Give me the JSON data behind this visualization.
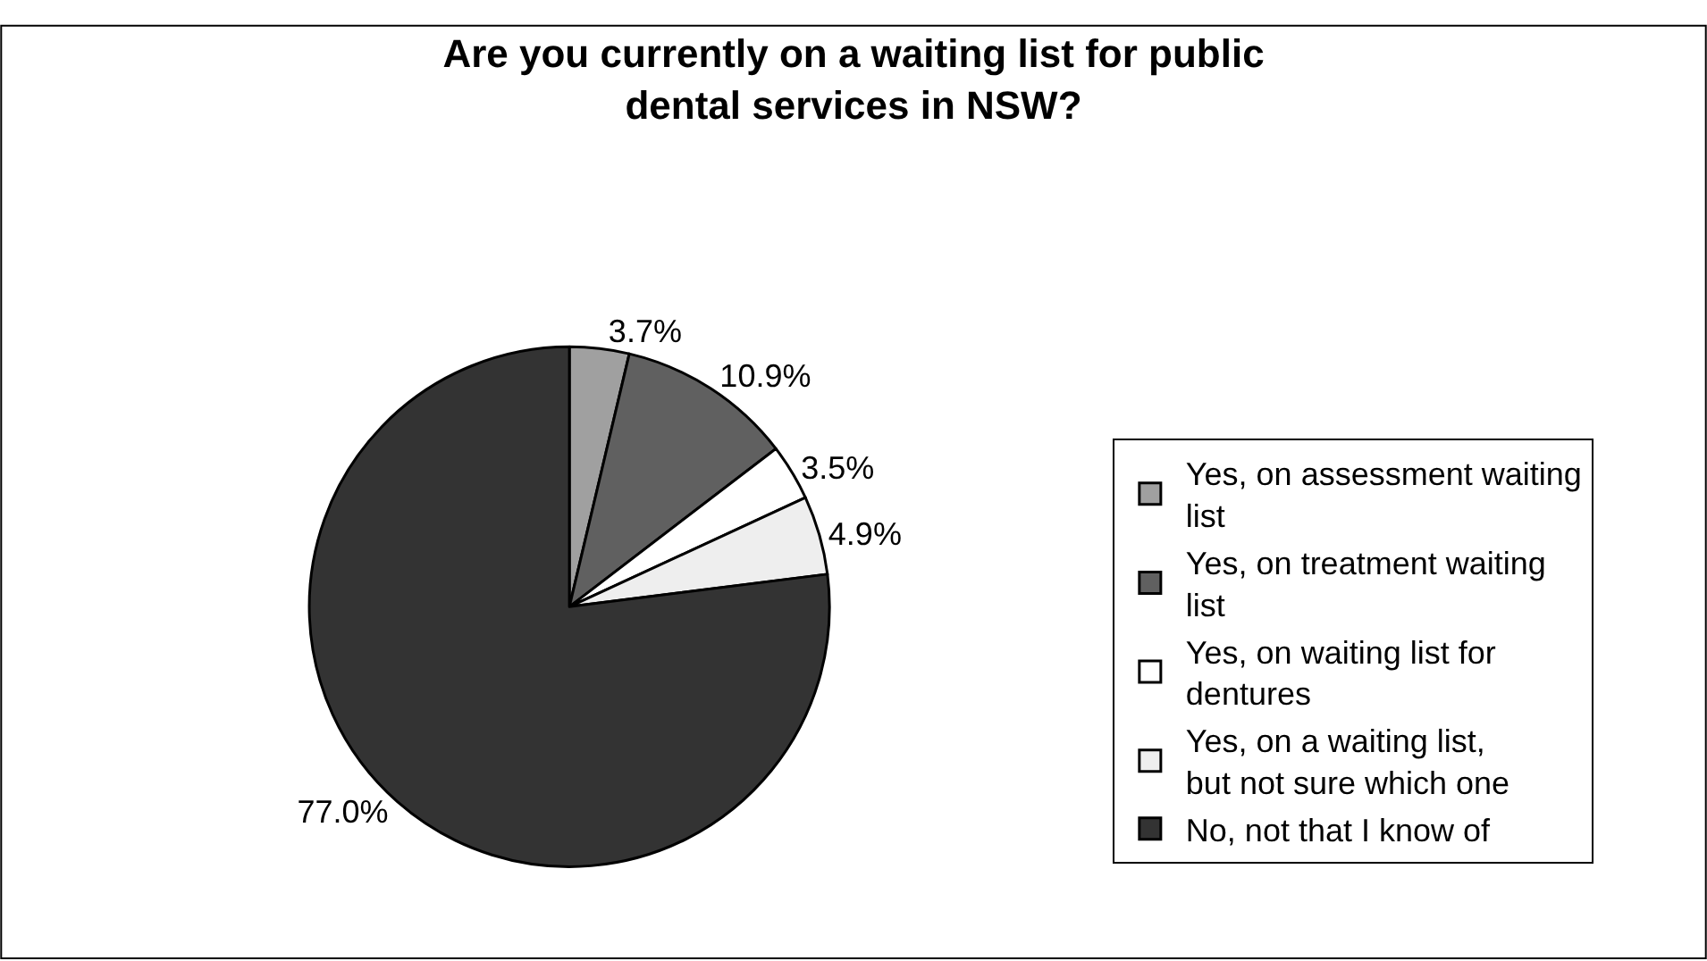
{
  "chart_data": {
    "type": "pie",
    "title": "Are you currently on a waiting list for public dental services in NSW?",
    "categories": [
      "Yes, on assessment waiting list",
      "Yes, on treatment waiting list",
      "Yes, on waiting list for dentures",
      "Yes, on a waiting list, but not sure which one",
      "No, not that I know of"
    ],
    "values": [
      3.7,
      10.9,
      3.5,
      4.9,
      77.0
    ],
    "value_labels": [
      "3.7%",
      "10.9%",
      "3.5%",
      "4.9%",
      "77.0%"
    ],
    "colors": [
      "#a0a0a0",
      "#606060",
      "#ffffff",
      "#eeeeee",
      "#333333"
    ],
    "legend": "right"
  }
}
